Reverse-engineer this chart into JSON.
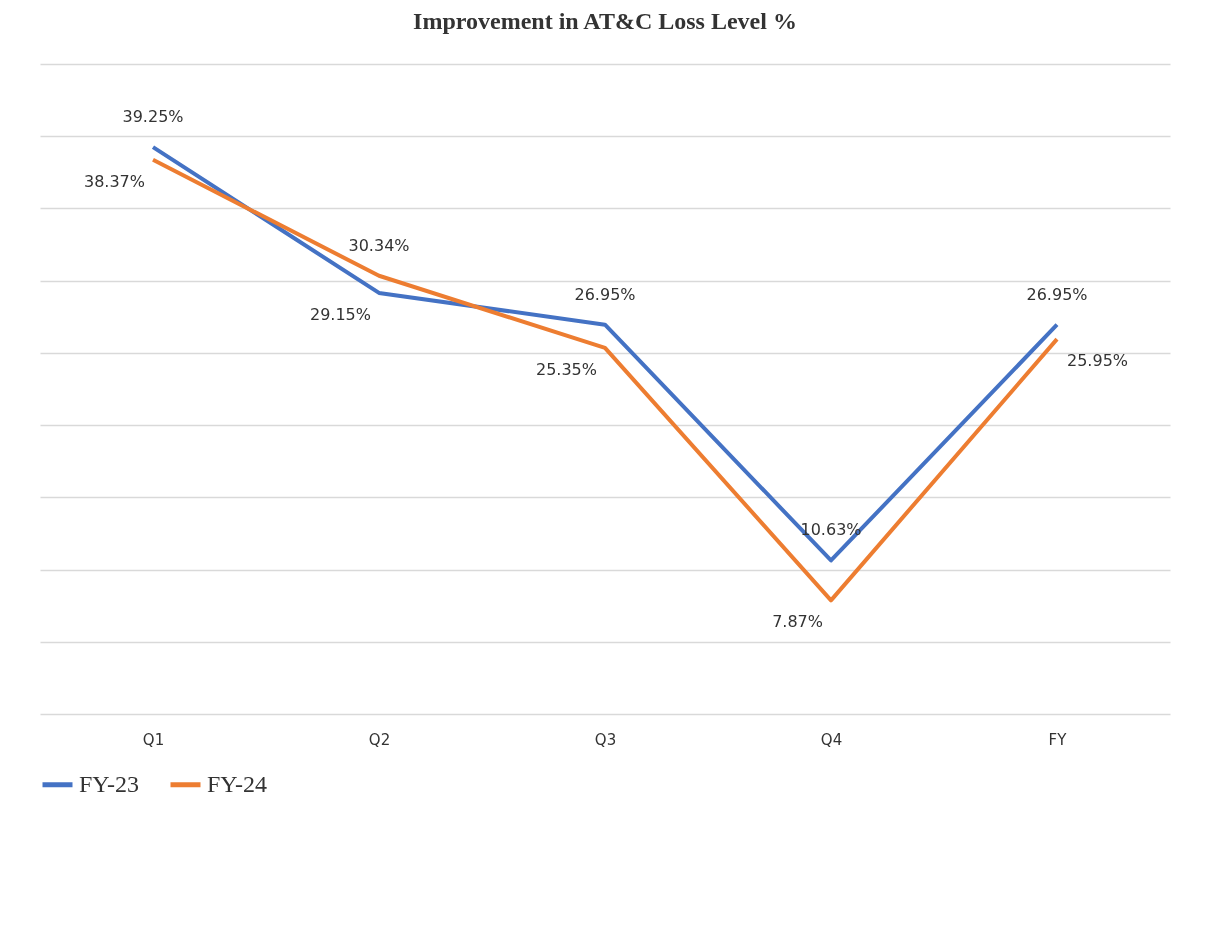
{
  "chart_data": {
    "type": "line",
    "title": "Improvement in AT&C Loss  Level %",
    "categories": [
      "Q1",
      "Q2",
      "Q3",
      "Q4",
      "FY"
    ],
    "series": [
      {
        "name": "FY-23",
        "color": "#4472c4",
        "values": [
          39.25,
          29.15,
          26.95,
          10.63,
          26.95
        ],
        "value_labels": [
          "39.25%",
          "29.15%",
          "26.95%",
          "10.63%",
          "26.95%"
        ]
      },
      {
        "name": "FY-24",
        "color": "#ed7d31",
        "values": [
          38.37,
          30.34,
          25.35,
          7.87,
          25.95
        ],
        "value_labels": [
          "38.37%",
          "30.34%",
          "25.35%",
          "7.87%",
          "25.95%"
        ]
      }
    ],
    "ylim": [
      0,
      45
    ],
    "yticks": [
      {
        "value": 0,
        "label": null
      },
      {
        "value": 5,
        "label": null
      },
      {
        "value": 10,
        "label": null
      },
      {
        "value": 15,
        "label": null
      },
      {
        "value": 20,
        "label": null
      },
      {
        "value": 25,
        "label": null
      },
      {
        "value": 30,
        "label": null
      },
      {
        "value": 35,
        "label": null
      },
      {
        "value": 40,
        "label": null
      },
      {
        "value": 45,
        "label": null
      }
    ],
    "grid": "y",
    "legend": "bottom",
    "tick_labels": "x",
    "marker": "none",
    "line_style": "solid"
  }
}
